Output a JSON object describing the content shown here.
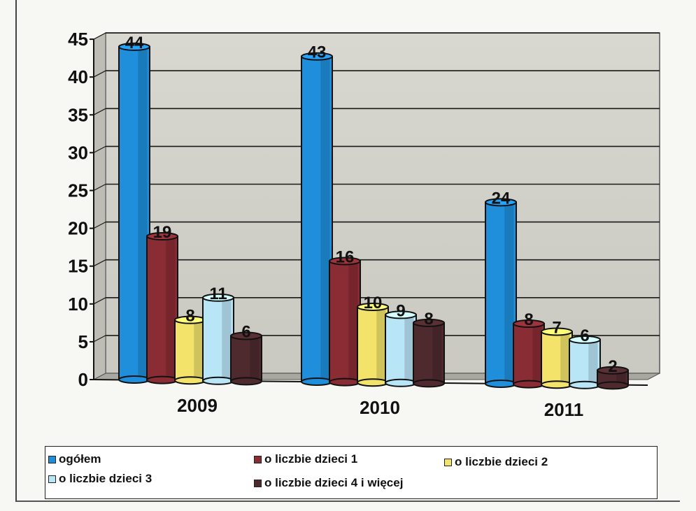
{
  "chart_data": {
    "type": "bar",
    "categories": [
      "2009",
      "2010",
      "2011"
    ],
    "series": [
      {
        "name": "ogółem",
        "values": [
          44,
          43,
          24
        ],
        "color": "#1f8fdb"
      },
      {
        "name": "o liczbie dzieci 1",
        "values": [
          19,
          16,
          8
        ],
        "color": "#8a2c34"
      },
      {
        "name": "o liczbie dzieci 2",
        "values": [
          8,
          10,
          7
        ],
        "color": "#f3e36a"
      },
      {
        "name": "o liczbie dzieci 3",
        "values": [
          11,
          9,
          6
        ],
        "color": "#b9e6f7"
      },
      {
        "name": "o liczbie dzieci 4 i więcej",
        "values": [
          6,
          8,
          2
        ],
        "color": "#4e2a2e"
      }
    ],
    "y_ticks": [
      "0",
      "5",
      "10",
      "15",
      "20",
      "25",
      "30",
      "35",
      "40",
      "45"
    ],
    "ylim": [
      0,
      45
    ],
    "grid": true,
    "legend_position": "bottom"
  },
  "legend_rows": [
    [
      "ogółem",
      "o liczbie dzieci 1",
      "o liczbie dzieci 2"
    ],
    [
      "o liczbie dzieci 3",
      "o liczbie dzieci 4 i więcej"
    ]
  ]
}
